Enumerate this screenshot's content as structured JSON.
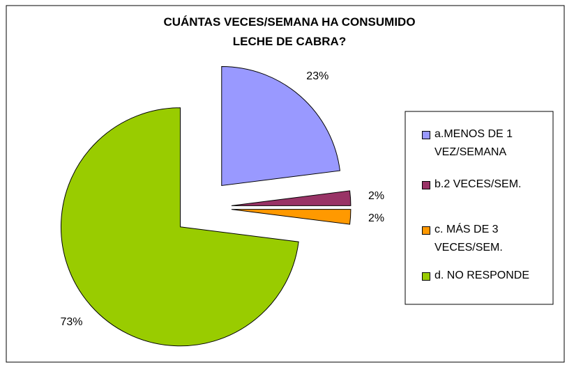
{
  "chart_data": {
    "type": "pie",
    "title": "CUÁNTAS VECES/SEMANA HA CONSUMIDO LECHE DE CABRA?",
    "categories": [
      "a.MENOS DE 1 VEZ/SEMANA",
      "b.2 VECES/SEM.",
      "c. MÁS DE 3 VECES/SEM.",
      "d. NO RESPONDE"
    ],
    "values": [
      23,
      2,
      2,
      73
    ],
    "value_labels": [
      "23%",
      "2%",
      "2%",
      "73%"
    ],
    "colors": [
      "#9999ff",
      "#993366",
      "#ff9900",
      "#99cc00"
    ],
    "legend": "right"
  }
}
